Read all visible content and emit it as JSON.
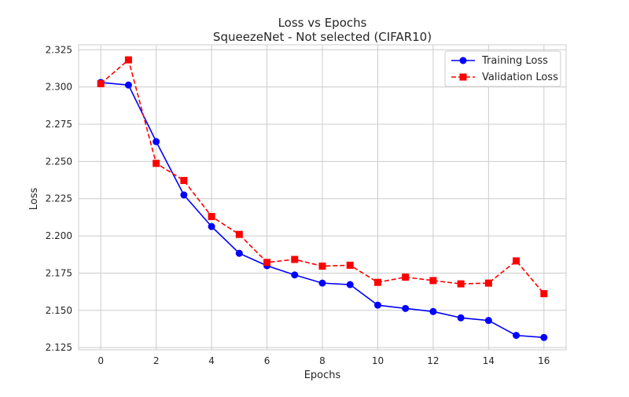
{
  "chart_data": {
    "type": "line",
    "title": "Loss vs Epochs",
    "subtitle": "SqueezeNet - Not selected (CIFAR10)",
    "xlabel": "Epochs",
    "ylabel": "Loss",
    "x": [
      0,
      1,
      2,
      3,
      4,
      5,
      6,
      7,
      8,
      9,
      10,
      11,
      12,
      13,
      14,
      15,
      16
    ],
    "xlim": [
      -0.8,
      16.8
    ],
    "ylim": [
      2.1235,
      2.3283
    ],
    "xticks": [
      0,
      2,
      4,
      6,
      8,
      10,
      12,
      14,
      16
    ],
    "xtick_labels": [
      "0",
      "2",
      "4",
      "6",
      "8",
      "10",
      "12",
      "14",
      "16"
    ],
    "yticks": [
      2.125,
      2.15,
      2.175,
      2.2,
      2.225,
      2.25,
      2.275,
      2.3,
      2.325
    ],
    "ytick_labels": [
      "2.125",
      "2.150",
      "2.175",
      "2.200",
      "2.225",
      "2.250",
      "2.275",
      "2.300",
      "2.325"
    ],
    "grid": true,
    "legend_position": "top-right",
    "series": [
      {
        "name": "Training Loss",
        "color": "#0000ff",
        "line_style": "solid",
        "marker": "circle",
        "values": [
          2.303,
          2.3013,
          2.2633,
          2.2275,
          2.2063,
          2.1883,
          2.18,
          2.1738,
          2.1683,
          2.1673,
          2.1535,
          2.1513,
          2.1492,
          2.145,
          2.1432,
          2.1332,
          2.1318
        ]
      },
      {
        "name": "Validation Loss",
        "color": "#ff0000",
        "line_style": "dashed",
        "marker": "square",
        "values": [
          2.3022,
          2.3182,
          2.2487,
          2.2372,
          2.213,
          2.201,
          2.1822,
          2.1842,
          2.1797,
          2.1803,
          2.1688,
          2.1723,
          2.17,
          2.1678,
          2.1683,
          2.1832,
          2.1612
        ]
      }
    ]
  }
}
